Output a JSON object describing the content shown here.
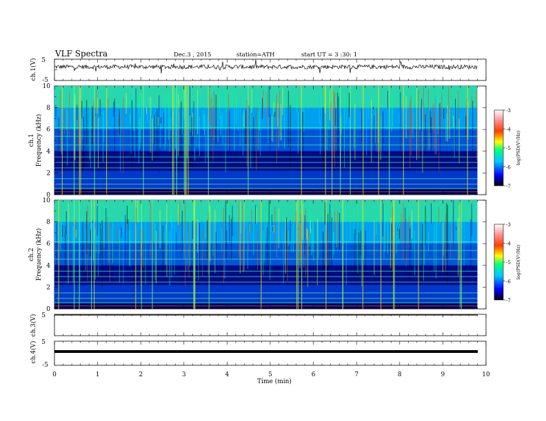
{
  "header": {
    "title": "VLF  Spectra",
    "date": "Dec.3  , 2015",
    "station": "station=ATH",
    "start": "start  UT  =   3  :30: 1"
  },
  "colors": {
    "axis": "#000000",
    "colorbar_stops": [
      "#000000",
      "#0000ff",
      "#00c8ff",
      "#00ff80",
      "#ffff00",
      "#ff4000",
      "#ff9090",
      "#ffffff"
    ],
    "spectrogram_background": "#001060"
  },
  "chart_data": [
    {
      "type": "line",
      "name": "ch1-waveform",
      "ylabel": "ch.1(V)",
      "ylim": [
        -5,
        5
      ],
      "yticks": [
        5,
        -5
      ],
      "xlim": [
        0,
        10
      ],
      "baseline_v": 1.4,
      "noise_amplitude_v": 1.0
    },
    {
      "type": "heatmap",
      "name": "ch1-spectrogram",
      "channel_label": "ch.1",
      "ylabel": "Frequency  (kHz)",
      "ylim": [
        0,
        10
      ],
      "yticks": [
        0,
        2,
        4,
        6,
        8,
        10
      ],
      "xlim": [
        0,
        9.8
      ],
      "colorbar": {
        "label": "log(PSD(V²/Hz)",
        "range": [
          -7,
          -3
        ],
        "ticks": [
          -3,
          -4,
          -5,
          -6,
          -7
        ]
      }
    },
    {
      "type": "heatmap",
      "name": "ch2-spectrogram",
      "channel_label": "ch.2",
      "ylabel": "Frequency  (kHz)",
      "ylim": [
        0,
        10
      ],
      "yticks": [
        0,
        2,
        4,
        6,
        8,
        10
      ],
      "xlim": [
        0,
        9.8
      ],
      "colorbar": {
        "label": "log(PSD(V²/Hz)",
        "range": [
          -7,
          -3
        ],
        "ticks": [
          -3,
          -4,
          -5,
          -6,
          -7
        ]
      }
    },
    {
      "type": "line",
      "name": "ch3-waveform",
      "ylabel": "ch.3(V)",
      "ylim": [
        -5,
        5
      ],
      "yticks": [
        5
      ],
      "xlim": [
        0,
        10
      ],
      "baseline_v": 5
    },
    {
      "type": "line",
      "name": "ch4-waveform",
      "ylabel": "ch.4(V)",
      "ylim": [
        -5,
        5
      ],
      "yticks": [
        5,
        -5
      ],
      "xlim": [
        0,
        10
      ],
      "baseline_v": 0
    }
  ],
  "xaxis": {
    "label": "Time  (min)",
    "ticks": [
      "0",
      "1",
      "2",
      "3",
      "4",
      "5",
      "6",
      "7",
      "8",
      "9",
      "10"
    ]
  }
}
